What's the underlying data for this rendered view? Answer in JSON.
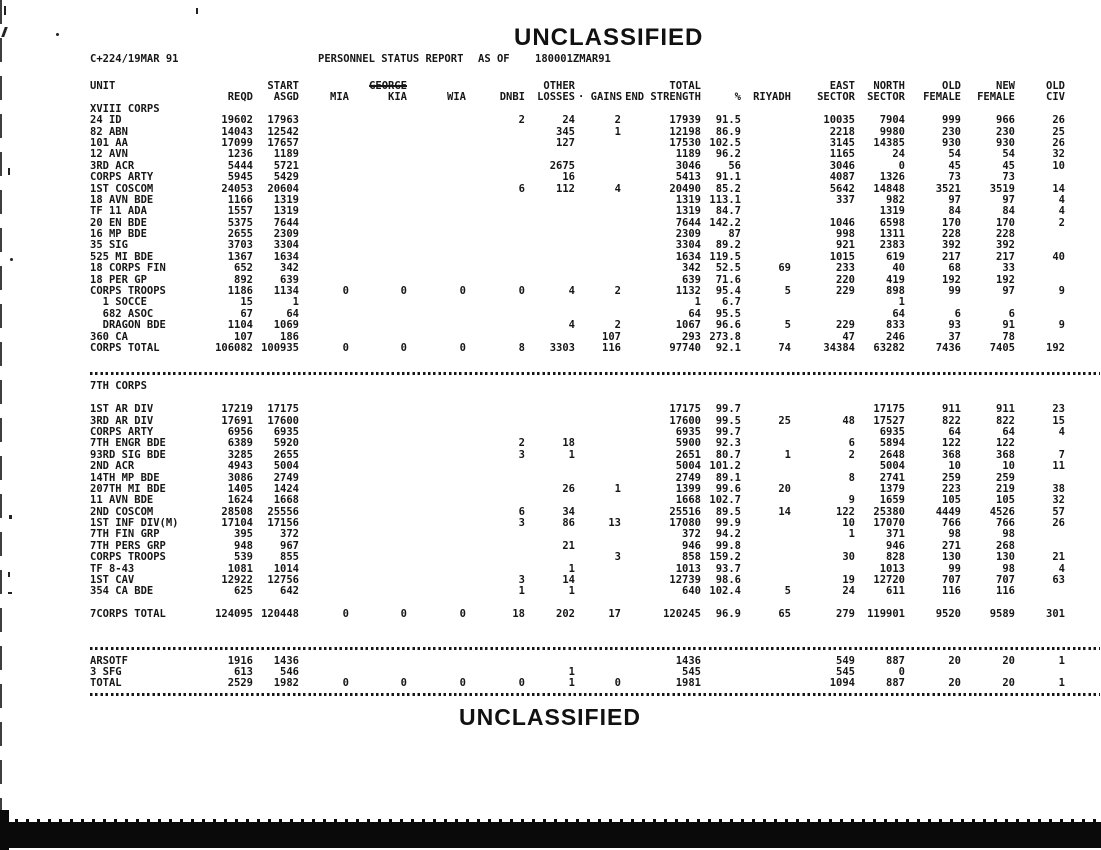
{
  "colors": {
    "ink": "#161616",
    "paper": "#ffffff"
  },
  "page": {
    "classification_top": "UNCLASSIFIED",
    "classification_bottom": "UNCLASSIFIED",
    "date_code": "C+224/19MAR 91",
    "report_title": "PERSONNEL STATUS REPORT",
    "as_of_label": "AS OF",
    "as_of_value": "180001ZMAR91"
  },
  "table": {
    "header_row1": [
      "UNIT",
      "",
      "START",
      "",
      {
        "t": "GEORGE",
        "struck": true
      },
      "",
      "",
      "OTHER",
      "",
      "TOTAL",
      "",
      "",
      "EAST",
      "NORTH",
      "OLD",
      "NEW",
      "OLD"
    ],
    "header_row2": [
      "",
      "REQD",
      "ASGD",
      "MIA",
      "KIA",
      "WIA",
      "DNBI",
      "LOSSES",
      "· GAINS",
      "END STRENGTH",
      "%",
      "RIYADH",
      "SECTOR",
      "SECTOR",
      "FEMALE",
      "FEMALE",
      "CIV"
    ],
    "blocks": [
      {
        "type": "section_label",
        "text": "XVIII CORPS"
      },
      {
        "type": "row",
        "cells": [
          "24 ID",
          "19602",
          "17963",
          "",
          "",
          "",
          "2",
          "24",
          "2",
          "17939",
          "91.5",
          "",
          "10035",
          "7904",
          "999",
          "966",
          "26"
        ]
      },
      {
        "type": "row",
        "cells": [
          "82 ABN",
          "14043",
          "12542",
          "",
          "",
          "",
          "",
          "345",
          "1",
          "12198",
          "86.9",
          "",
          "2218",
          "9980",
          "230",
          "230",
          "25"
        ]
      },
      {
        "type": "row",
        "cells": [
          "101 AA",
          "17099",
          "17657",
          "",
          "",
          "",
          "",
          "127",
          "",
          "17530",
          "102.5",
          "",
          "3145",
          "14385",
          "930",
          "930",
          "26"
        ]
      },
      {
        "type": "row",
        "cells": [
          "12 AVN",
          "1236",
          "1189",
          "",
          "",
          "",
          "",
          "",
          "",
          "1189",
          "96.2",
          "",
          "1165",
          "24",
          "54",
          "54",
          "32"
        ]
      },
      {
        "type": "row",
        "cells": [
          "3RD ACR",
          "5444",
          "5721",
          "",
          "",
          "",
          "",
          "2675",
          "",
          "3046",
          "56",
          "",
          "3046",
          "0",
          "45",
          "45",
          "10"
        ]
      },
      {
        "type": "row",
        "cells": [
          "CORPS ARTY",
          "5945",
          "5429",
          "",
          "",
          "",
          "",
          "16",
          "",
          "5413",
          "91.1",
          "",
          "4087",
          "1326",
          "73",
          "73",
          ""
        ]
      },
      {
        "type": "row",
        "cells": [
          "1ST COSCOM",
          "24053",
          "20604",
          "",
          "",
          "",
          "6",
          "112",
          "4",
          "20490",
          "85.2",
          "",
          "5642",
          "14848",
          "3521",
          "3519",
          "14"
        ]
      },
      {
        "type": "row",
        "cells": [
          "18 AVN BDE",
          "1166",
          "1319",
          "",
          "",
          "",
          "",
          "",
          "",
          "1319",
          "113.1",
          "",
          "337",
          "982",
          "97",
          "97",
          "4"
        ]
      },
      {
        "type": "row",
        "cells": [
          "TF 11 ADA",
          "1557",
          "1319",
          "",
          "",
          "",
          "",
          "",
          "",
          "1319",
          "84.7",
          "",
          "",
          "1319",
          "84",
          "84",
          "4"
        ]
      },
      {
        "type": "row",
        "cells": [
          "20 EN BDE",
          "5375",
          "7644",
          "",
          "",
          "",
          "",
          "",
          "",
          "7644",
          "142.2",
          "",
          "1046",
          "6598",
          "170",
          "170",
          "2"
        ]
      },
      {
        "type": "row",
        "cells": [
          "16 MP BDE",
          "2655",
          "2309",
          "",
          "",
          "",
          "",
          "",
          "",
          "2309",
          "87",
          "",
          "998",
          "1311",
          "228",
          "228",
          ""
        ]
      },
      {
        "type": "row",
        "cells": [
          "35 SIG",
          "3703",
          "3304",
          "",
          "",
          "",
          "",
          "",
          "",
          "3304",
          "89.2",
          "",
          "921",
          "2383",
          "392",
          "392",
          ""
        ]
      },
      {
        "type": "row",
        "cells": [
          "525 MI BDE",
          "1367",
          "1634",
          "",
          "",
          "",
          "",
          "",
          "",
          "1634",
          "119.5",
          "",
          "1015",
          "619",
          "217",
          "217",
          "40"
        ]
      },
      {
        "type": "row",
        "cells": [
          "18 CORPS FIN",
          "652",
          "342",
          "",
          "",
          "",
          "",
          "",
          "",
          "342",
          "52.5",
          "69",
          "233",
          "40",
          "68",
          "33",
          ""
        ]
      },
      {
        "type": "row",
        "cells": [
          "18 PER GP",
          "892",
          "639",
          "",
          "",
          "",
          "",
          "",
          "",
          "639",
          "71.6",
          "",
          "220",
          "419",
          "192",
          "192",
          ""
        ]
      },
      {
        "type": "row",
        "cells": [
          "CORPS TROOPS",
          "1186",
          "1134",
          "0",
          "0",
          "0",
          "0",
          "4",
          "2",
          "1132",
          "95.4",
          "5",
          "229",
          "898",
          "99",
          "97",
          "9"
        ]
      },
      {
        "type": "row",
        "cells": [
          "  1 SOCCE",
          "15",
          "1",
          "",
          "",
          "",
          "",
          "",
          "",
          "1",
          "6.7",
          "",
          "",
          "1",
          "",
          "",
          ""
        ]
      },
      {
        "type": "row",
        "cells": [
          "  682 ASOC",
          "67",
          "64",
          "",
          "",
          "",
          "",
          "",
          "",
          "64",
          "95.5",
          "",
          "",
          "64",
          "6",
          "6",
          ""
        ]
      },
      {
        "type": "row",
        "cells": [
          "  DRAGON BDE",
          "1104",
          "1069",
          "",
          "",
          "",
          "",
          "4",
          "2",
          "1067",
          "96.6",
          "5",
          "229",
          "833",
          "93",
          "91",
          "9"
        ]
      },
      {
        "type": "row",
        "cells": [
          "360 CA",
          "107",
          "186",
          "",
          "",
          "",
          "",
          "",
          "107",
          "293",
          "273.8",
          "",
          "47",
          "246",
          "37",
          "78",
          ""
        ]
      },
      {
        "type": "row",
        "cells": [
          "CORPS TOTAL",
          "106082",
          "100935",
          "0",
          "0",
          "0",
          "8",
          "3303",
          "116",
          "97740",
          "92.1",
          "74",
          "34384",
          "63282",
          "7436",
          "7405",
          "192"
        ]
      },
      {
        "type": "separator"
      },
      {
        "type": "section_label",
        "text": "7TH CORPS"
      },
      {
        "type": "blank"
      },
      {
        "type": "row",
        "cells": [
          "1ST AR DIV",
          "17219",
          "17175",
          "",
          "",
          "",
          "",
          "",
          "",
          "17175",
          "99.7",
          "",
          "",
          "17175",
          "911",
          "911",
          "23"
        ]
      },
      {
        "type": "row",
        "cells": [
          "3RD AR DIV",
          "17691",
          "17600",
          "",
          "",
          "",
          "",
          "",
          "",
          "17600",
          "99.5",
          "25",
          "48",
          "17527",
          "822",
          "822",
          "15"
        ]
      },
      {
        "type": "row",
        "cells": [
          "CORPS ARTY",
          "6956",
          "6935",
          "",
          "",
          "",
          "",
          "",
          "",
          "6935",
          "99.7",
          "",
          "",
          "6935",
          "64",
          "64",
          "4"
        ]
      },
      {
        "type": "row",
        "cells": [
          "7TH ENGR BDE",
          "6389",
          "5920",
          "",
          "",
          "",
          "2",
          "18",
          "",
          "5900",
          "92.3",
          "",
          "6",
          "5894",
          "122",
          "122",
          ""
        ]
      },
      {
        "type": "row",
        "cells": [
          "93RD SIG BDE",
          "3285",
          "2655",
          "",
          "",
          "",
          "3",
          "1",
          "",
          "2651",
          "80.7",
          "1",
          "2",
          "2648",
          "368",
          "368",
          "7"
        ]
      },
      {
        "type": "row",
        "cells": [
          "2ND ACR",
          "4943",
          "5004",
          "",
          "",
          "",
          "",
          "",
          "",
          "5004",
          "101.2",
          "",
          "",
          "5004",
          "10",
          "10",
          "11"
        ]
      },
      {
        "type": "row",
        "cells": [
          "14TH MP BDE",
          "3086",
          "2749",
          "",
          "",
          "",
          "",
          "",
          "",
          "2749",
          "89.1",
          "",
          "8",
          "2741",
          "259",
          "259",
          ""
        ]
      },
      {
        "type": "row",
        "cells": [
          "207TH MI BDE",
          "1405",
          "1424",
          "",
          "",
          "",
          "",
          "26",
          "1",
          "1399",
          "99.6",
          "20",
          "",
          "1379",
          "223",
          "219",
          "38"
        ]
      },
      {
        "type": "row",
        "cells": [
          "11 AVN BDE",
          "1624",
          "1668",
          "",
          "",
          "",
          "",
          "",
          "",
          "1668",
          "102.7",
          "",
          "9",
          "1659",
          "105",
          "105",
          "32"
        ]
      },
      {
        "type": "row",
        "cells": [
          "2ND COSCOM",
          "28508",
          "25556",
          "",
          "",
          "",
          "6",
          "34",
          "",
          "25516",
          "89.5",
          "14",
          "122",
          "25380",
          "4449",
          "4526",
          "57"
        ]
      },
      {
        "type": "row",
        "cells": [
          "1ST INF DIV(M)",
          "17104",
          "17156",
          "",
          "",
          "",
          "3",
          "86",
          "13",
          "17080",
          "99.9",
          "",
          "10",
          "17070",
          "766",
          "766",
          "26"
        ]
      },
      {
        "type": "row",
        "cells": [
          "7TH FIN GRP",
          "395",
          "372",
          "",
          "",
          "",
          "",
          "",
          "",
          "372",
          "94.2",
          "",
          "1",
          "371",
          "98",
          "98",
          ""
        ]
      },
      {
        "type": "row",
        "cells": [
          "7TH PERS GRP",
          "948",
          "967",
          "",
          "",
          "",
          "",
          "21",
          "",
          "946",
          "99.8",
          "",
          "",
          "946",
          "271",
          "268",
          ""
        ]
      },
      {
        "type": "row",
        "cells": [
          "CORPS TROOPS",
          "539",
          "855",
          "",
          "",
          "",
          "",
          "",
          "3",
          "858",
          "159.2",
          "",
          "30",
          "828",
          "130",
          "130",
          "21"
        ]
      },
      {
        "type": "row",
        "cells": [
          "TF 8-43",
          "1081",
          "1014",
          "",
          "",
          "",
          "",
          "1",
          "",
          "1013",
          "93.7",
          "",
          "",
          "1013",
          "99",
          "98",
          "4"
        ]
      },
      {
        "type": "row",
        "cells": [
          "1ST CAV",
          "12922",
          "12756",
          "",
          "",
          "",
          "3",
          "14",
          "",
          "12739",
          "98.6",
          "",
          "19",
          "12720",
          "707",
          "707",
          "63"
        ]
      },
      {
        "type": "row",
        "cells": [
          "354 CA BDE",
          "625",
          "642",
          "",
          "",
          "",
          "1",
          "1",
          "",
          "640",
          "102.4",
          "5",
          "24",
          "611",
          "116",
          "116",
          ""
        ]
      },
      {
        "type": "blank"
      },
      {
        "type": "row",
        "cells": [
          "7CORPS TOTAL",
          "124095",
          "120448",
          "0",
          "0",
          "0",
          "18",
          "202",
          "17",
          "120245",
          "96.9",
          "65",
          "279",
          "119901",
          "9520",
          "9589",
          "301"
        ]
      },
      {
        "type": "separator"
      },
      {
        "type": "row",
        "cells": [
          "ARSOTF",
          "1916",
          "1436",
          "",
          "",
          "",
          "",
          "",
          "",
          "1436",
          "",
          "",
          "549",
          "887",
          "20",
          "20",
          "1"
        ]
      },
      {
        "type": "row",
        "cells": [
          "3 SFG",
          "613",
          "546",
          "",
          "",
          "",
          "",
          "1",
          "",
          "545",
          "",
          "",
          "545",
          "0",
          "",
          "",
          ""
        ]
      },
      {
        "type": "row",
        "cells": [
          "TOTAL",
          "2529",
          "1982",
          "0",
          "0",
          "0",
          "0",
          "1",
          "0",
          "1981",
          "",
          "",
          "1094",
          "887",
          "20",
          "20",
          "1"
        ]
      },
      {
        "type": "separator"
      }
    ]
  }
}
